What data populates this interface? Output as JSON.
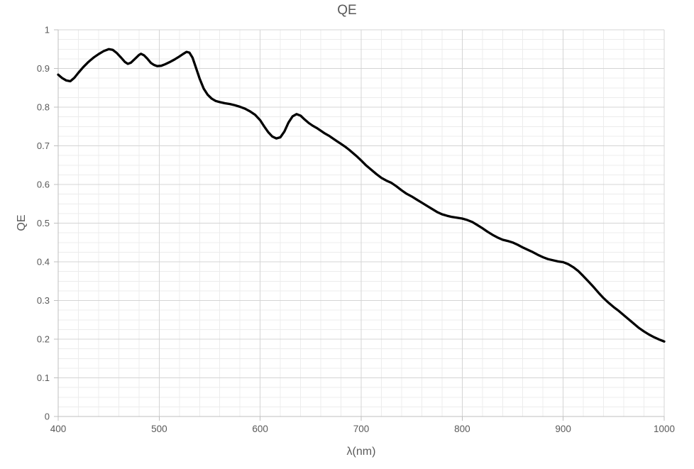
{
  "chart_data": {
    "type": "line",
    "title": "QE",
    "xlabel": "λ(nm)",
    "ylabel": "QE",
    "xlim": [
      400,
      1000
    ],
    "ylim": [
      0,
      1
    ],
    "x_tick_values": [
      400,
      500,
      600,
      700,
      800,
      900,
      1000
    ],
    "x_tick_labels": [
      "400",
      "500",
      "600",
      "700",
      "800",
      "900",
      "1000"
    ],
    "y_tick_values": [
      0,
      0.1,
      0.2,
      0.3,
      0.4,
      0.5,
      0.6,
      0.7,
      0.8,
      0.9,
      1
    ],
    "y_tick_labels": [
      "0",
      "0.1",
      "0.2",
      "0.3",
      "0.4",
      "0.5",
      "0.6",
      "0.7",
      "0.8",
      "0.9",
      "1"
    ],
    "x_minor_step": 20,
    "y_minor_step": 0.025,
    "grid": {
      "major": true,
      "minor": true
    },
    "legend_position": "none",
    "series": [
      {
        "name": "QE",
        "color": "#000000",
        "line_width": 3.3,
        "smooth": true,
        "points": [
          [
            400,
            0.884
          ],
          [
            404,
            0.875
          ],
          [
            408,
            0.869
          ],
          [
            412,
            0.867
          ],
          [
            416,
            0.876
          ],
          [
            420,
            0.889
          ],
          [
            425,
            0.904
          ],
          [
            430,
            0.917
          ],
          [
            435,
            0.928
          ],
          [
            440,
            0.937
          ],
          [
            445,
            0.945
          ],
          [
            450,
            0.95
          ],
          [
            454,
            0.948
          ],
          [
            458,
            0.94
          ],
          [
            462,
            0.929
          ],
          [
            466,
            0.917
          ],
          [
            469,
            0.912
          ],
          [
            472,
            0.915
          ],
          [
            476,
            0.925
          ],
          [
            480,
            0.935
          ],
          [
            482,
            0.938
          ],
          [
            485,
            0.934
          ],
          [
            488,
            0.926
          ],
          [
            492,
            0.914
          ],
          [
            495,
            0.909
          ],
          [
            498,
            0.906
          ],
          [
            502,
            0.907
          ],
          [
            506,
            0.911
          ],
          [
            510,
            0.916
          ],
          [
            515,
            0.923
          ],
          [
            520,
            0.931
          ],
          [
            524,
            0.938
          ],
          [
            527,
            0.943
          ],
          [
            530,
            0.941
          ],
          [
            533,
            0.928
          ],
          [
            536,
            0.905
          ],
          [
            540,
            0.874
          ],
          [
            544,
            0.848
          ],
          [
            548,
            0.832
          ],
          [
            552,
            0.822
          ],
          [
            556,
            0.816
          ],
          [
            560,
            0.813
          ],
          [
            565,
            0.81
          ],
          [
            570,
            0.808
          ],
          [
            575,
            0.805
          ],
          [
            580,
            0.801
          ],
          [
            585,
            0.796
          ],
          [
            590,
            0.789
          ],
          [
            595,
            0.78
          ],
          [
            600,
            0.766
          ],
          [
            604,
            0.75
          ],
          [
            608,
            0.735
          ],
          [
            612,
            0.724
          ],
          [
            616,
            0.719
          ],
          [
            620,
            0.722
          ],
          [
            624,
            0.737
          ],
          [
            628,
            0.76
          ],
          [
            632,
            0.776
          ],
          [
            636,
            0.782
          ],
          [
            640,
            0.778
          ],
          [
            644,
            0.768
          ],
          [
            648,
            0.759
          ],
          [
            652,
            0.752
          ],
          [
            656,
            0.746
          ],
          [
            660,
            0.739
          ],
          [
            664,
            0.732
          ],
          [
            668,
            0.726
          ],
          [
            672,
            0.719
          ],
          [
            676,
            0.712
          ],
          [
            680,
            0.705
          ],
          [
            684,
            0.698
          ],
          [
            688,
            0.69
          ],
          [
            692,
            0.681
          ],
          [
            696,
            0.672
          ],
          [
            700,
            0.662
          ],
          [
            705,
            0.649
          ],
          [
            710,
            0.638
          ],
          [
            715,
            0.627
          ],
          [
            720,
            0.617
          ],
          [
            725,
            0.61
          ],
          [
            730,
            0.604
          ],
          [
            735,
            0.595
          ],
          [
            740,
            0.585
          ],
          [
            745,
            0.576
          ],
          [
            750,
            0.569
          ],
          [
            755,
            0.561
          ],
          [
            760,
            0.553
          ],
          [
            765,
            0.545
          ],
          [
            770,
            0.537
          ],
          [
            775,
            0.529
          ],
          [
            780,
            0.523
          ],
          [
            785,
            0.519
          ],
          [
            790,
            0.516
          ],
          [
            795,
            0.514
          ],
          [
            800,
            0.512
          ],
          [
            805,
            0.508
          ],
          [
            810,
            0.503
          ],
          [
            815,
            0.495
          ],
          [
            820,
            0.487
          ],
          [
            825,
            0.478
          ],
          [
            830,
            0.47
          ],
          [
            835,
            0.463
          ],
          [
            840,
            0.457
          ],
          [
            845,
            0.454
          ],
          [
            850,
            0.45
          ],
          [
            855,
            0.444
          ],
          [
            860,
            0.437
          ],
          [
            865,
            0.431
          ],
          [
            870,
            0.425
          ],
          [
            875,
            0.418
          ],
          [
            880,
            0.412
          ],
          [
            885,
            0.407
          ],
          [
            890,
            0.404
          ],
          [
            895,
            0.401
          ],
          [
            900,
            0.399
          ],
          [
            905,
            0.394
          ],
          [
            910,
            0.386
          ],
          [
            915,
            0.376
          ],
          [
            920,
            0.363
          ],
          [
            925,
            0.349
          ],
          [
            930,
            0.335
          ],
          [
            935,
            0.32
          ],
          [
            940,
            0.306
          ],
          [
            945,
            0.294
          ],
          [
            950,
            0.283
          ],
          [
            955,
            0.273
          ],
          [
            960,
            0.262
          ],
          [
            965,
            0.251
          ],
          [
            970,
            0.24
          ],
          [
            975,
            0.229
          ],
          [
            980,
            0.22
          ],
          [
            985,
            0.212
          ],
          [
            990,
            0.205
          ],
          [
            995,
            0.199
          ],
          [
            1000,
            0.194
          ]
        ]
      }
    ]
  },
  "colors": {
    "background": "#ffffff",
    "text": "#595959",
    "axis_line": "#bfbfbf",
    "tick_mark": "#bfbfbf",
    "major_gridline": "#d4d4d4",
    "minor_gridline": "#ececec",
    "series_line": "#000000"
  }
}
